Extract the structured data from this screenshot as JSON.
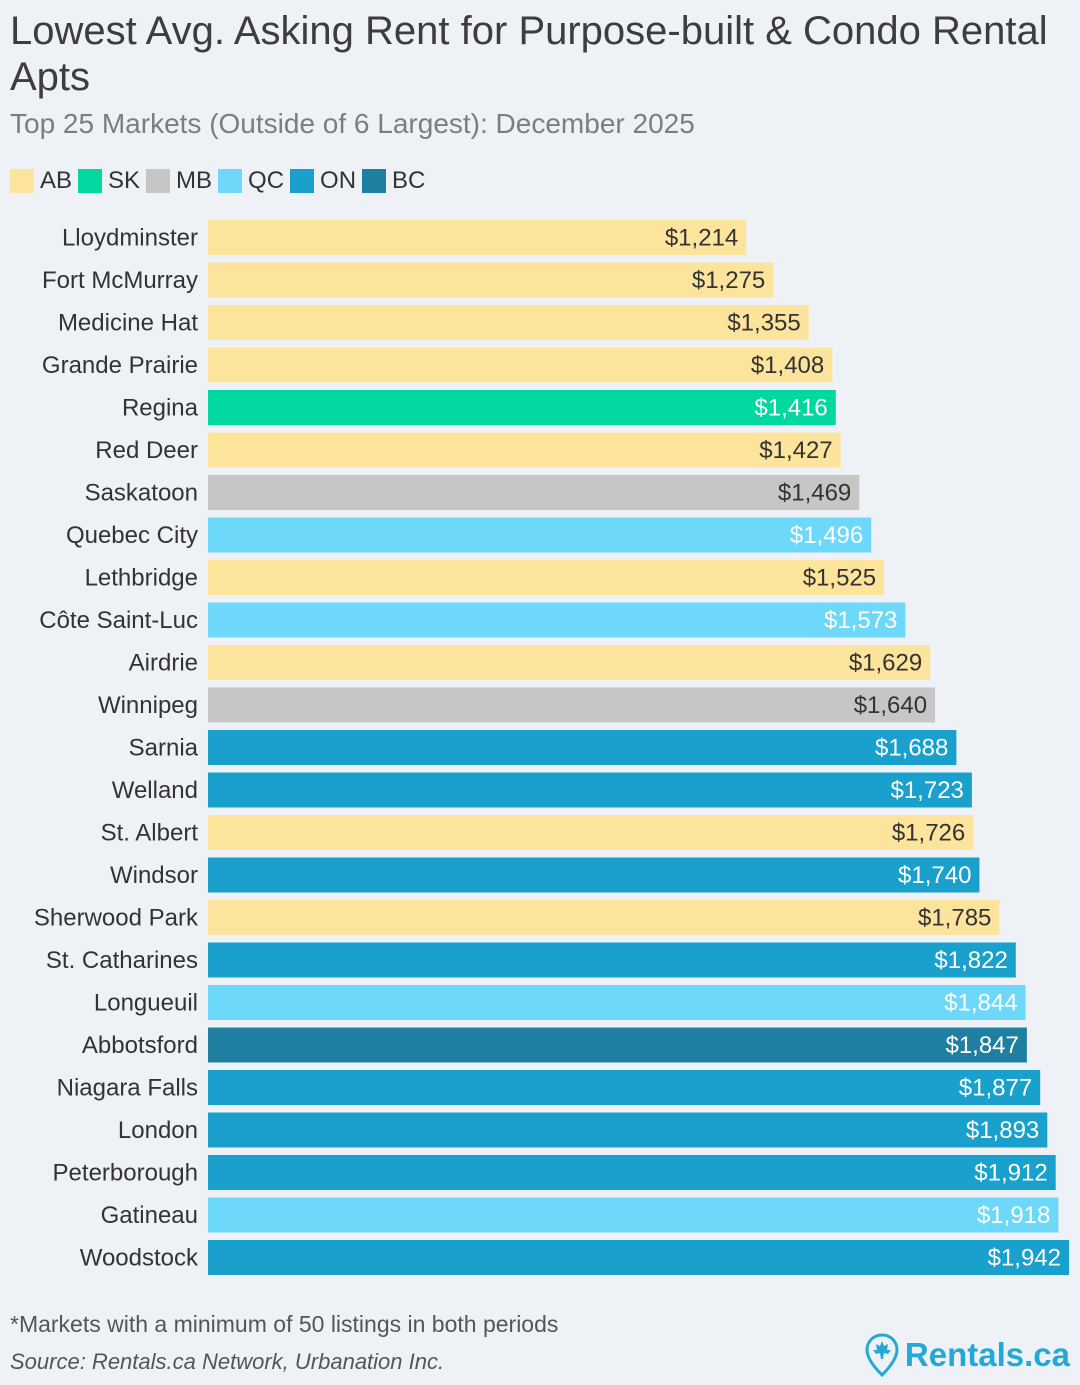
{
  "header": {
    "title": "Lowest Avg. Asking Rent for Purpose-built & Condo Rental Apts",
    "subtitle": "Top 25 Markets (Outside of 6 Largest): December 2025"
  },
  "legend": [
    {
      "label": "AB",
      "color": "#fde49c"
    },
    {
      "label": "SK",
      "color": "#00d8a0"
    },
    {
      "label": "MB",
      "color": "#c6c6c6"
    },
    {
      "label": "QC",
      "color": "#6ed8fa"
    },
    {
      "label": "ON",
      "color": "#1aa0cc"
    },
    {
      "label": "BC",
      "color": "#1f7fa0"
    }
  ],
  "chart_data": {
    "type": "bar",
    "orientation": "horizontal",
    "title": "Lowest Avg. Asking Rent for Purpose-built & Condo Rental Apts",
    "subtitle": "Top 25 Markets (Outside of 6 Largest): December 2025",
    "xlabel": "",
    "ylabel": "",
    "xlim": [
      0,
      1942
    ],
    "grid": false,
    "legend_position": "top-left",
    "categories": [
      "Lloydminster",
      "Fort McMurray",
      "Medicine Hat",
      "Grande Prairie",
      "Regina",
      "Red Deer",
      "Saskatoon",
      "Quebec City",
      "Lethbridge",
      "Côte Saint-Luc",
      "Airdrie",
      "Winnipeg",
      "Sarnia",
      "Welland",
      "St. Albert",
      "Windsor",
      "Sherwood Park",
      "St. Catharines",
      "Longueuil",
      "Abbotsford",
      "Niagara Falls",
      "London",
      "Peterborough",
      "Gatineau",
      "Woodstock"
    ],
    "values": [
      1214,
      1275,
      1355,
      1408,
      1416,
      1427,
      1469,
      1496,
      1525,
      1573,
      1629,
      1640,
      1688,
      1723,
      1726,
      1740,
      1785,
      1822,
      1844,
      1847,
      1877,
      1893,
      1912,
      1918,
      1942
    ],
    "value_labels": [
      "$1,214",
      "$1,275",
      "$1,355",
      "$1,408",
      "$1,416",
      "$1,427",
      "$1,469",
      "$1,496",
      "$1,525",
      "$1,573",
      "$1,629",
      "$1,640",
      "$1,688",
      "$1,723",
      "$1,726",
      "$1,740",
      "$1,785",
      "$1,822",
      "$1,844",
      "$1,847",
      "$1,877",
      "$1,893",
      "$1,912",
      "$1,918",
      "$1,942"
    ],
    "provinces": [
      "AB",
      "AB",
      "AB",
      "AB",
      "SK",
      "AB",
      "MB",
      "QC",
      "AB",
      "QC",
      "AB",
      "MB",
      "ON",
      "ON",
      "AB",
      "ON",
      "AB",
      "ON",
      "QC",
      "BC",
      "ON",
      "ON",
      "ON",
      "QC",
      "ON"
    ]
  },
  "footer": {
    "footnote": "*Markets with a minimum of 50 listings in both periods",
    "source": "Source: Rentals.ca Network, Urbanation Inc.",
    "brand": "Rentals.ca",
    "brand_color": "#24a9d6"
  }
}
